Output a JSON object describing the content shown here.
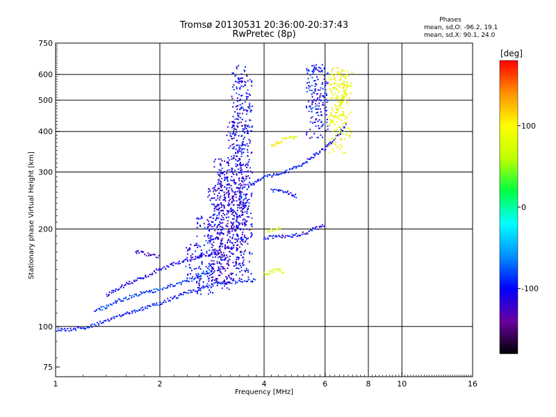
{
  "chart_data": {
    "type": "scatter",
    "title": "Tromsø 20130531 20:36:00-20:37:43",
    "subtitle": "RwPretec (8p)",
    "xlabel": "Frequency [MHz]",
    "ylabel": "Stationary phase Virtual Height [km]",
    "x_scale": "log",
    "y_scale": "log",
    "xlim": [
      1,
      16
    ],
    "ylim": [
      70,
      750
    ],
    "grid": true,
    "x_ticks": [
      1,
      2,
      4,
      6,
      8,
      10,
      16
    ],
    "y_ticks": [
      75,
      100,
      200,
      300,
      400,
      500,
      600,
      750
    ],
    "x_grid": [
      2,
      4,
      6,
      8,
      10
    ],
    "y_grid": [
      100,
      200,
      300,
      400,
      500,
      600
    ],
    "stats": {
      "heading": "Phases",
      "line1": "mean, sd,O: -96.2, 19.1",
      "line2": "mean, sd,X:  90.1, 24.0"
    },
    "colorbar": {
      "label": "[deg]",
      "range": [
        -180,
        180
      ],
      "ticks": [
        100,
        0,
        -100
      ],
      "stops": [
        "#000000",
        "#6a00a0",
        "#0000ff",
        "#0090ff",
        "#00ffff",
        "#00ff40",
        "#c0ff00",
        "#ffff00",
        "#ff9000",
        "#ff0000"
      ]
    },
    "series": [
      {
        "trace": "o-mode",
        "segments": [
          {
            "f": [
              1.0,
              1.05,
              1.1,
              1.2,
              1.3,
              1.4,
              1.5,
              1.6,
              1.7,
              1.8,
              1.9,
              2.0,
              2.2,
              2.4,
              2.6,
              2.8,
              3.0,
              3.2,
              3.4,
              3.6,
              3.8
            ],
            "h": [
              98,
              98,
              98,
              99,
              101,
              104,
              107,
              110,
              112,
              114,
              116,
              118,
              123,
              127,
              131,
              134,
              136,
              137,
              138,
              139,
              139
            ],
            "phase": -95
          },
          {
            "f": [
              1.3,
              1.4,
              1.5,
              1.6,
              1.7,
              1.8,
              2.0,
              2.2,
              2.4,
              2.6,
              2.8
            ],
            "h": [
              112,
              115,
              120,
              122,
              125,
              127,
              130,
              134,
              138,
              143,
              148
            ],
            "phase": -85
          },
          {
            "f": [
              1.4,
              1.6,
              1.8,
              2.0,
              2.2,
              2.4,
              2.6,
              2.8,
              3.0
            ],
            "h": [
              125,
              135,
              142,
              150,
              156,
              160,
              164,
              168,
              170
            ],
            "phase": -110
          },
          {
            "f": [
              1.7,
              1.8,
              1.9,
              2.0
            ],
            "h": [
              170,
              168,
              166,
              164
            ],
            "phase": -120
          },
          {
            "f": [
              3.6,
              3.8,
              4.0,
              4.2,
              4.5,
              4.8,
              5.0,
              5.3,
              5.6,
              6.0,
              6.3,
              6.6,
              6.9
            ],
            "h": [
              272,
              280,
              288,
              293,
              298,
              305,
              312,
              322,
              338,
              355,
              372,
              395,
              420
            ],
            "phase": -100
          },
          {
            "f": [
              4.0,
              4.3,
              4.6,
              5.0,
              5.3,
              5.6,
              6.0
            ],
            "h": [
              188,
              189,
              190,
              192,
              195,
              200,
              205
            ],
            "phase": -105
          },
          {
            "f": [
              4.2,
              4.4,
              4.7,
              5.0
            ],
            "h": [
              262,
              265,
              258,
              252
            ],
            "phase": -100
          }
        ],
        "columns": [
          {
            "f": 3.4,
            "h": [
              175,
              640
            ],
            "phase": -110
          },
          {
            "f": 3.5,
            "h": [
              140,
              600
            ],
            "phase": -105
          },
          {
            "f": 3.3,
            "h": [
              150,
              450
            ],
            "phase": -110
          },
          {
            "f": 3.1,
            "h": [
              140,
              300
            ],
            "phase": -115
          },
          {
            "f": 2.9,
            "h": [
              135,
              270
            ],
            "phase": -110
          },
          {
            "f": 3.0,
            "h": [
              130,
              330
            ],
            "phase": -112
          },
          {
            "f": 2.7,
            "h": [
              125,
              220
            ],
            "phase": -100
          },
          {
            "f": 2.5,
            "h": [
              140,
              180
            ],
            "phase": -105
          },
          {
            "f": 5.6,
            "h": [
              380,
              640
            ],
            "phase": -100
          },
          {
            "f": 5.8,
            "h": [
              400,
              650
            ],
            "phase": -105
          }
        ]
      },
      {
        "trace": "x-mode",
        "segments": [
          {
            "f": [
              4.2,
              4.4,
              4.6,
              4.8,
              5.0
            ],
            "h": [
              360,
              370,
              378,
              382,
              385
            ],
            "phase": 95
          },
          {
            "f": [
              4.0,
              4.2,
              4.4,
              4.6
            ],
            "h": [
              145,
              148,
              150,
              147
            ],
            "phase": 90
          },
          {
            "f": [
              4.1,
              4.3,
              4.5
            ],
            "h": [
              197,
              200,
              203
            ],
            "phase": 85
          },
          {
            "f": [
              6.2,
              6.4,
              6.6,
              6.8,
              7.0
            ],
            "h": [
              420,
              450,
              480,
              520,
              560
            ],
            "phase": 90
          }
        ],
        "columns": [
          {
            "f": 6.5,
            "h": [
              340,
              640
            ],
            "phase": 95
          },
          {
            "f": 6.8,
            "h": [
              380,
              620
            ],
            "phase": 88
          }
        ]
      }
    ]
  }
}
